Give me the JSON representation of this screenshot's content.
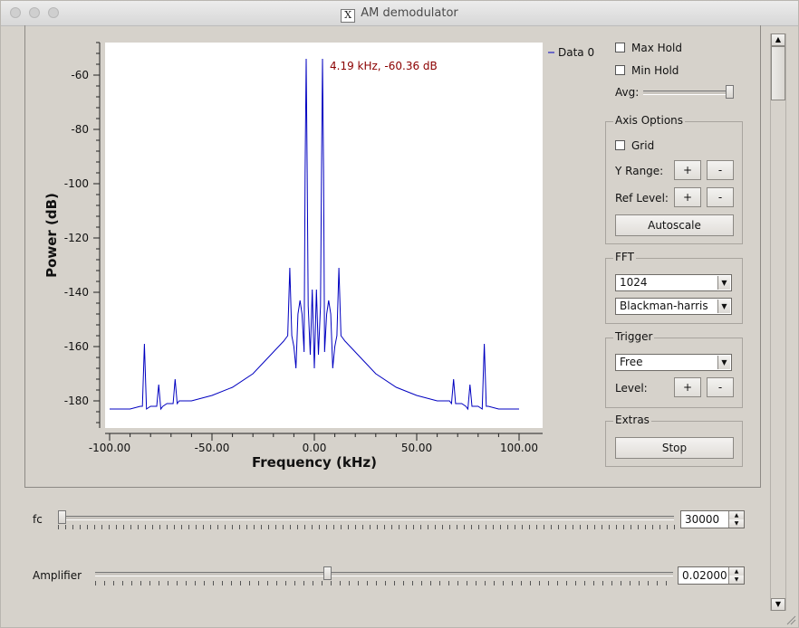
{
  "window": {
    "title": "AM demodulator",
    "title_icon": "X"
  },
  "chart_data": {
    "type": "line",
    "xlabel": "Frequency (kHz)",
    "ylabel": "Power (dB)",
    "xlim": [
      -100,
      100
    ],
    "ylim": [
      -190,
      -48
    ],
    "x_ticks": [
      "-100.00",
      "-50.00",
      "0.00",
      "50.00",
      "100.00"
    ],
    "y_ticks": [
      "-60",
      "-80",
      "-100",
      "-120",
      "-140",
      "-160",
      "-180"
    ],
    "grid": false,
    "legend_position": "top-right",
    "marker_annotation": "4.19 kHz, -60.36 dB",
    "line_color": "#0000c0",
    "series": [
      {
        "name": "Data 0",
        "x": [
          -100,
          -90,
          -85,
          -84,
          -83,
          -82,
          -80,
          -78,
          -77,
          -76,
          -75,
          -74,
          -72,
          -70,
          -69,
          -68,
          -67,
          -66,
          -60,
          -50,
          -40,
          -30,
          -20,
          -15,
          -13,
          -12,
          -11,
          -10,
          -9,
          -8,
          -7,
          -6,
          -5,
          -4.5,
          -4,
          -3.5,
          -3,
          -2,
          -1,
          0,
          1,
          2,
          3,
          3.5,
          4,
          4.5,
          5,
          6,
          7,
          8,
          9,
          10,
          11,
          12,
          13,
          15,
          20,
          30,
          40,
          50,
          60,
          66,
          67,
          68,
          69,
          70,
          72,
          74,
          75,
          76,
          77,
          78,
          80,
          82,
          83,
          84,
          85,
          90,
          100
        ],
        "y": [
          -183,
          -183,
          -182,
          -182,
          -159,
          -183,
          -182,
          -182,
          -182,
          -174,
          -183,
          -182,
          -181,
          -181,
          -181,
          -172,
          -181,
          -180,
          -180,
          -178,
          -175,
          -170,
          -162,
          -158,
          -156,
          -131,
          -156,
          -160,
          -168,
          -148,
          -143,
          -148,
          -162,
          -96,
          -54,
          -96,
          -145,
          -163,
          -139,
          -168,
          -139,
          -163,
          -145,
          -96,
          -54,
          -96,
          -162,
          -148,
          -143,
          -148,
          -168,
          -160,
          -156,
          -131,
          -156,
          -158,
          -162,
          -170,
          -175,
          -178,
          -180,
          -180,
          -181,
          -172,
          -181,
          -181,
          -181,
          -182,
          -183,
          -174,
          -182,
          -182,
          -182,
          -183,
          -159,
          -182,
          -182,
          -183,
          -183
        ]
      }
    ]
  },
  "side_panel": {
    "max_hold_label": "Max Hold",
    "min_hold_label": "Min Hold",
    "avg_label": "Avg:",
    "avg_value": 1.0,
    "axis_options": {
      "title": "Axis Options",
      "grid_label": "Grid",
      "y_range_label": "Y Range:",
      "ref_level_label": "Ref Level:",
      "plus": "+",
      "minus": "-",
      "autoscale_label": "Autoscale"
    },
    "fft": {
      "title": "FFT",
      "size_value": "1024",
      "window_value": "Blackman-harris"
    },
    "trigger": {
      "title": "Trigger",
      "mode_value": "Free",
      "level_label": "Level:",
      "plus": "+",
      "minus": "-"
    },
    "extras": {
      "title": "Extras",
      "stop_label": "Stop"
    }
  },
  "controls": {
    "fc": {
      "label": "fc",
      "value": "30000",
      "slider_fraction": 0.0
    },
    "amplifier": {
      "label": "Amplifier",
      "value": "0.02000",
      "slider_fraction": 0.4
    }
  },
  "icons": {
    "dropdown": "chevron-down-icon",
    "spin_up": "arrow-up-icon",
    "spin_down": "arrow-down-icon"
  }
}
